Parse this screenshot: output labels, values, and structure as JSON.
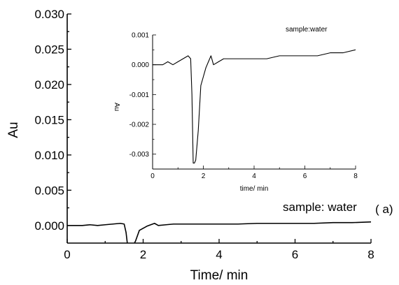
{
  "chart_data": [
    {
      "type": "line",
      "title": "",
      "xlabel": "Time/ min",
      "ylabel": "Au",
      "xlim": [
        0,
        8
      ],
      "ylim": [
        -0.0025,
        0.03
      ],
      "xticks": [
        "0",
        "2",
        "4",
        "6",
        "8"
      ],
      "yticks": [
        "0.000",
        "0.005",
        "0.010",
        "0.015",
        "0.020",
        "0.025",
        "0.030"
      ],
      "annotations": [
        "sample: water",
        "( a)"
      ],
      "grid": false,
      "series": [
        {
          "x": [
            0,
            0.2,
            0.4,
            0.6,
            0.8,
            1.0,
            1.2,
            1.4,
            1.5,
            1.55,
            1.6,
            1.65,
            1.7,
            1.8,
            1.9,
            2.0,
            2.1,
            2.2,
            2.3,
            2.4,
            2.6,
            2.8,
            3.0,
            3.5,
            4.0,
            4.5,
            5.0,
            5.5,
            6.0,
            6.5,
            7.0,
            7.5,
            8.0
          ],
          "y": [
            0.0,
            0.0,
            0.0,
            0.0001,
            0.0,
            0.0001,
            0.0002,
            0.0003,
            0.0002,
            -0.001,
            -0.0033,
            -0.0033,
            -0.0032,
            -0.0022,
            -0.0007,
            -0.0004,
            -0.0001,
            0.0001,
            0.0003,
            0.0,
            0.0001,
            0.0002,
            0.0002,
            0.0002,
            0.0002,
            0.0002,
            0.0003,
            0.0003,
            0.0003,
            0.0003,
            0.0004,
            0.0004,
            0.0005
          ]
        }
      ]
    },
    {
      "type": "line",
      "title": "",
      "xlabel": "time/ min",
      "ylabel": "Au",
      "xlim": [
        0,
        8
      ],
      "ylim": [
        -0.0035,
        0.001
      ],
      "xticks": [
        "0",
        "2",
        "4",
        "6",
        "8"
      ],
      "yticks": [
        "-0.003",
        "-0.002",
        "-0.001",
        "0.000",
        "0.001"
      ],
      "annotations": [
        "sample:water"
      ],
      "grid": false,
      "series": [
        {
          "x": [
            0,
            0.2,
            0.4,
            0.6,
            0.8,
            1.0,
            1.2,
            1.4,
            1.5,
            1.55,
            1.6,
            1.65,
            1.7,
            1.8,
            1.9,
            2.0,
            2.1,
            2.2,
            2.3,
            2.4,
            2.6,
            2.8,
            3.0,
            3.5,
            4.0,
            4.5,
            5.0,
            5.5,
            6.0,
            6.5,
            7.0,
            7.5,
            8.0
          ],
          "y": [
            0.0,
            0.0,
            0.0,
            0.0001,
            0.0,
            0.0001,
            0.0002,
            0.0003,
            0.0002,
            -0.001,
            -0.0033,
            -0.0033,
            -0.0032,
            -0.0022,
            -0.0007,
            -0.0004,
            -0.0001,
            0.0001,
            0.0003,
            0.0,
            0.0001,
            0.0002,
            0.0002,
            0.0002,
            0.0002,
            0.0002,
            0.0003,
            0.0003,
            0.0003,
            0.0003,
            0.0004,
            0.0004,
            0.0005
          ]
        }
      ]
    }
  ]
}
